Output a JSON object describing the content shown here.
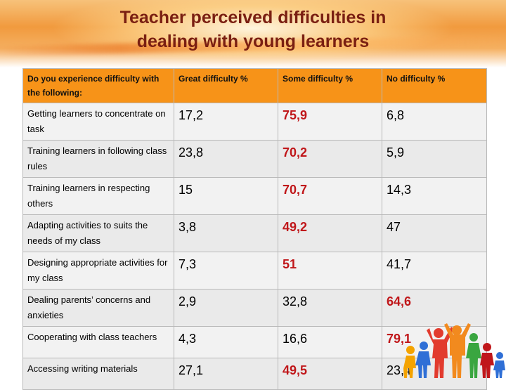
{
  "slide": {
    "title_line1": "Teacher perceived difficulties in",
    "title_line2": "dealing with young learners"
  },
  "table": {
    "headers": [
      "Do you experience difficulty with the following:",
      "Great  difficulty %",
      "Some difficulty %",
      "No difficulty %"
    ],
    "rows": [
      {
        "item": "Getting learners to concentrate on task",
        "great": "17,2",
        "some": "75,9",
        "none": "6,8",
        "highlight": "some"
      },
      {
        "item": "Training learners in following class rules",
        "great": "23,8",
        "some": "70,2",
        "none": "5,9",
        "highlight": "some"
      },
      {
        "item": "Training learners in respecting others",
        "great": "15",
        "some": "70,7",
        "none": "14,3",
        "highlight": "some"
      },
      {
        "item": "Adapting activities to suits the needs of my class",
        "great": "3,8",
        "some": "49,2",
        "none": "47",
        "highlight": "some"
      },
      {
        "item": "Designing appropriate activities for my class",
        "great": "7,3",
        "some": "51",
        "none": "41,7",
        "highlight": "some"
      },
      {
        "item": "Dealing parents’ concerns and anxieties",
        "great": "2,9",
        "some": "32,8",
        "none": "64,6",
        "highlight": "none"
      },
      {
        "item": "Cooperating with class teachers",
        "great": "4,3",
        "some": "16,6",
        "none": "79,1",
        "highlight": "none"
      },
      {
        "item": "Accessing writing materials",
        "great": "27,1",
        "some": "49,5",
        "none": "23,4",
        "highlight": "some"
      }
    ]
  },
  "colors": {
    "header_fill": "#f79318",
    "highlight_text": "#c0171a",
    "title_text": "#7a1f12"
  },
  "decoration": {
    "illustration": "children-silhouettes-icon"
  }
}
